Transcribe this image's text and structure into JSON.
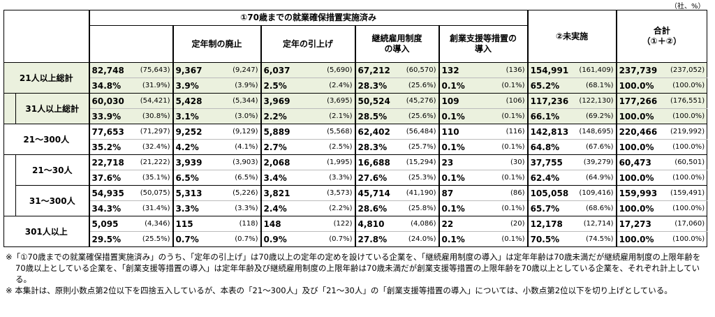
{
  "unit": "（社、%）",
  "header": {
    "group": "①70歳までの就業確保措置実施済み",
    "sub": [
      "定年制の廃止",
      "定年の引上げ",
      "継続雇用制度\nの導入",
      "創業支援等措置の\n導入"
    ],
    "not_done": "②未実施",
    "total": "合計\n（①＋②）"
  },
  "table": {
    "rows": [
      {
        "label": "21人以上総計",
        "count": [
          "82,748",
          "(75,643)",
          "9,367",
          "(9,247)",
          "6,037",
          "(5,690)",
          "67,212",
          "(60,570)",
          "132",
          "(136)",
          "154,991",
          "(161,409)",
          "237,739",
          "(237,052)"
        ],
        "percent": [
          "34.8%",
          "(31.9%)",
          "3.9%",
          "(3.9%)",
          "2.5%",
          "(2.4%)",
          "28.3%",
          "(25.6%)",
          "0.1%",
          "(0.1%)",
          "65.2%",
          "(68.1%)",
          "100.0%",
          "(100.0%)"
        ]
      },
      {
        "label": "31人以上総計",
        "count": [
          "60,030",
          "(54,421)",
          "5,428",
          "(5,344)",
          "3,969",
          "(3,695)",
          "50,524",
          "(45,276)",
          "109",
          "(106)",
          "117,236",
          "(122,130)",
          "177,266",
          "(176,551)"
        ],
        "percent": [
          "33.9%",
          "(30.8%)",
          "3.1%",
          "(3.0%)",
          "2.2%",
          "(2.1%)",
          "28.5%",
          "(25.6%)",
          "0.1%",
          "(0.1%)",
          "66.1%",
          "(69.2%)",
          "100.0%",
          "(100.0%)"
        ]
      },
      {
        "label": "21～300人",
        "count": [
          "77,653",
          "(71,297)",
          "9,252",
          "(9,129)",
          "5,889",
          "(5,568)",
          "62,402",
          "(56,484)",
          "110",
          "(116)",
          "142,813",
          "(148,695)",
          "220,466",
          "(219,992)"
        ],
        "percent": [
          "35.2%",
          "(32.4%)",
          "4.2%",
          "(4.1%)",
          "2.7%",
          "(2.5%)",
          "28.3%",
          "(25.7%)",
          "0.1%",
          "(0.1%)",
          "64.8%",
          "(67.6%)",
          "100.0%",
          "(100.0%)"
        ]
      },
      {
        "label": "21～30人",
        "count": [
          "22,718",
          "(21,222)",
          "3,939",
          "(3,903)",
          "2,068",
          "(1,995)",
          "16,688",
          "(15,294)",
          "23",
          "(30)",
          "37,755",
          "(39,279)",
          "60,473",
          "(60,501)"
        ],
        "percent": [
          "37.6%",
          "(35.1%)",
          "6.5%",
          "(6.5%)",
          "3.4%",
          "(3.3%)",
          "27.6%",
          "(25.3%)",
          "0.1%",
          "(0.1%)",
          "62.4%",
          "(64.9%)",
          "100.0%",
          "(100.0%)"
        ]
      },
      {
        "label": "31～300人",
        "count": [
          "54,935",
          "(50,075)",
          "5,313",
          "(5,226)",
          "3,821",
          "(3,573)",
          "45,714",
          "(41,190)",
          "87",
          "(86)",
          "105,058",
          "(109,416)",
          "159,993",
          "(159,491)"
        ],
        "percent": [
          "34.3%",
          "(31.4%)",
          "3.3%",
          "(3.3%)",
          "2.4%",
          "(2.2%)",
          "28.6%",
          "(25.8%)",
          "0.1%",
          "(0.1%)",
          "65.7%",
          "(68.6%)",
          "100.0%",
          "(100.0%)"
        ]
      },
      {
        "label": "301人以上",
        "count": [
          "5,095",
          "(4,346)",
          "115",
          "(118)",
          "148",
          "(122)",
          "4,810",
          "(4,086)",
          "22",
          "(20)",
          "12,178",
          "(12,714)",
          "17,273",
          "(17,060)"
        ],
        "percent": [
          "29.5%",
          "(25.5%)",
          "0.7%",
          "(0.7%)",
          "0.9%",
          "(0.7%)",
          "27.8%",
          "(24.0%)",
          "0.1%",
          "(0.1%)",
          "70.5%",
          "(74.5%)",
          "100.0%",
          "(100.0%)"
        ]
      }
    ]
  },
  "notes": [
    "※「①70歳までの就業確保措置実施済み」のうち、「定年の引上げ」は70歳以上の定年の定めを設けている企業を、「継続雇用制度の導入」は定年年齢は70歳未満だが継続雇用制度の上限年齢を70歳以上としている企業を、「創業支援等措置の導入」は定年年齢及び継続雇用制度の上限年齢は70歳未満だが創業支援等措置の上限年齢を70歳以上としている企業を、それぞれ計上している。",
    "※ 本集計は、原則小数点第2位以下を四捨五入しているが、本表の「21～300人」及び「21～30人」の「創業支援等措置の導入」については、小数点第2位以下を切り上げとしている。"
  ]
}
